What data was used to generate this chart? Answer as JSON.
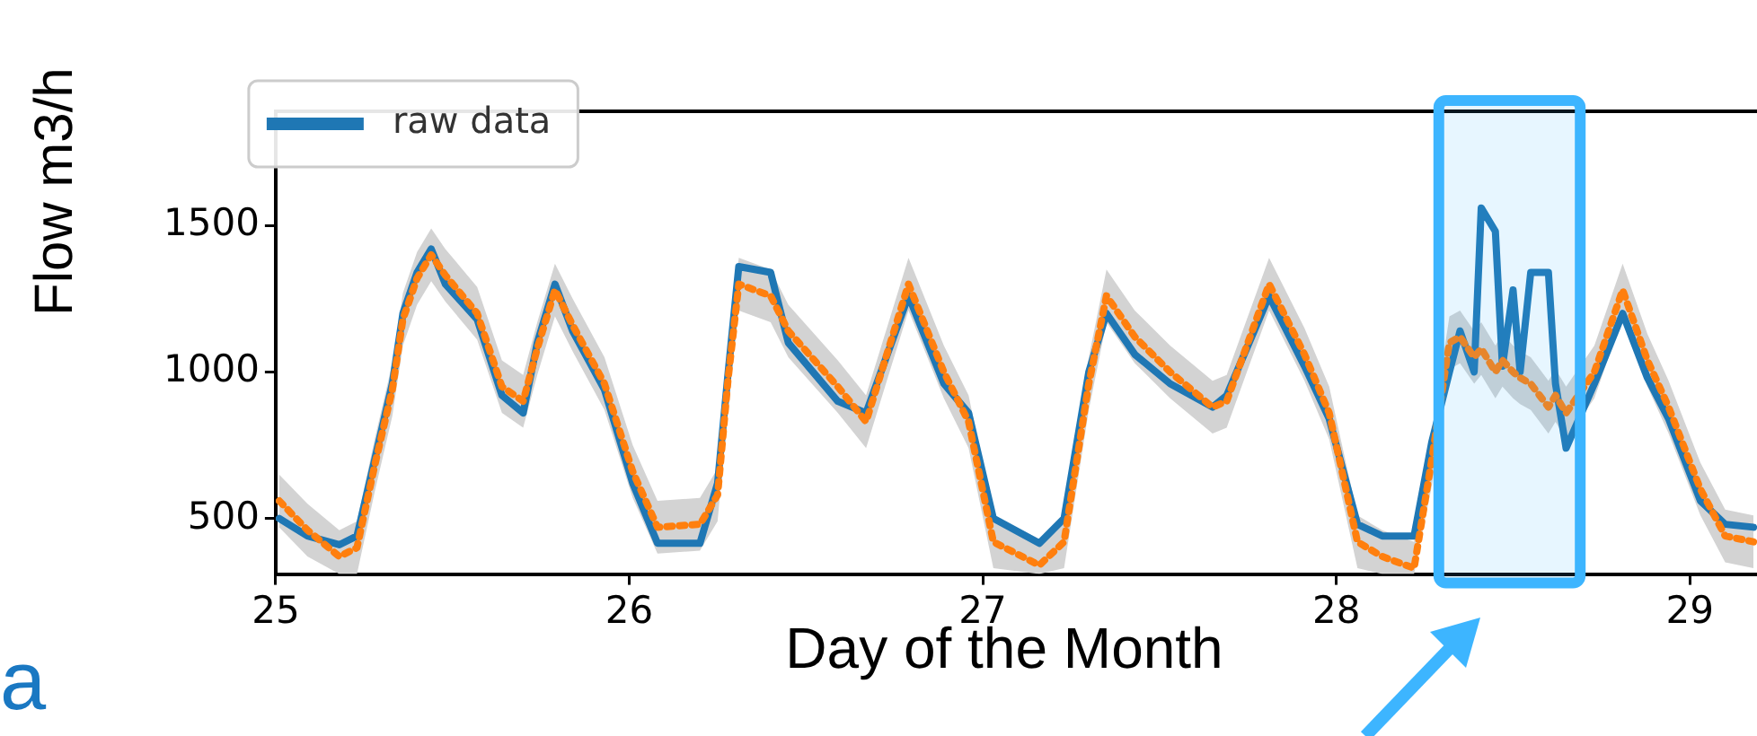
{
  "chart_data": {
    "type": "line",
    "xlabel": "Day of the Month",
    "ylabel": "Flow m3/h",
    "annotations": [
      "a"
    ],
    "x": [
      25.01,
      25.09,
      25.18,
      25.23,
      25.28,
      25.33,
      25.36,
      25.4,
      25.44,
      25.48,
      25.57,
      25.64,
      25.7,
      25.74,
      25.79,
      25.84,
      25.93,
      26.01,
      26.08,
      26.2,
      26.25,
      26.28,
      26.31,
      26.4,
      26.45,
      26.59,
      26.67,
      26.79,
      26.89,
      26.96,
      27.03,
      27.16,
      27.23,
      27.3,
      27.35,
      27.43,
      27.53,
      27.65,
      27.69,
      27.81,
      27.91,
      27.98,
      28.06,
      28.13,
      28.22,
      28.27,
      28.32,
      28.35,
      28.39,
      28.41,
      28.45,
      28.47,
      28.5,
      28.52,
      28.55,
      28.6,
      28.62,
      28.65,
      28.73,
      28.81,
      28.88,
      28.94,
      29.03,
      29.1,
      29.18
    ],
    "series": [
      {
        "name": "raw data",
        "color": "#1f77b4",
        "line_style": "solid",
        "values": [
          500,
          440,
          410,
          440,
          700,
          960,
          1200,
          1340,
          1420,
          1300,
          1180,
          920,
          860,
          1100,
          1300,
          1140,
          940,
          620,
          415,
          415,
          620,
          1000,
          1360,
          1340,
          1100,
          900,
          860,
          1260,
          960,
          860,
          500,
          415,
          500,
          1000,
          1200,
          1060,
          960,
          880,
          920,
          1260,
          1020,
          840,
          480,
          440,
          440,
          760,
          1000,
          1140,
          1000,
          1560,
          1480,
          1020,
          1280,
          1000,
          1340,
          1340,
          960,
          740,
          960,
          1200,
          980,
          840,
          560,
          480,
          470
        ]
      },
      {
        "color": "#ff7f0e",
        "line_style": "dotted",
        "values": [
          560,
          460,
          370,
          400,
          680,
          940,
          1180,
          1320,
          1400,
          1330,
          1200,
          950,
          900,
          1080,
          1280,
          1160,
          960,
          660,
          470,
          480,
          580,
          980,
          1300,
          1260,
          1140,
          950,
          830,
          1300,
          1000,
          830,
          420,
          340,
          420,
          960,
          1260,
          1120,
          1000,
          880,
          900,
          1300,
          1060,
          860,
          420,
          370,
          330,
          700,
          1100,
          1120,
          1050,
          1080,
          1000,
          1040,
          1000,
          980,
          960,
          880,
          920,
          860,
          1000,
          1280,
          1040,
          880,
          600,
          440,
          420
        ],
        "upper": [
          650,
          550,
          460,
          490,
          770,
          1030,
          1270,
          1410,
          1490,
          1420,
          1290,
          1040,
          990,
          1170,
          1370,
          1250,
          1050,
          750,
          560,
          570,
          670,
          1070,
          1390,
          1350,
          1230,
          1040,
          920,
          1390,
          1090,
          920,
          510,
          430,
          510,
          1050,
          1350,
          1210,
          1090,
          970,
          990,
          1390,
          1150,
          950,
          510,
          460,
          420,
          790,
          1190,
          1210,
          1140,
          1170,
          1090,
          1130,
          1090,
          1070,
          1050,
          970,
          1010,
          950,
          1090,
          1370,
          1130,
          970,
          690,
          530,
          510
        ],
        "lower": [
          470,
          370,
          310,
          310,
          590,
          850,
          1090,
          1230,
          1310,
          1240,
          1110,
          860,
          810,
          990,
          1190,
          1070,
          870,
          570,
          380,
          390,
          490,
          890,
          1210,
          1170,
          1050,
          860,
          740,
          1210,
          910,
          740,
          330,
          310,
          330,
          870,
          1170,
          1030,
          910,
          790,
          810,
          1210,
          970,
          770,
          330,
          310,
          310,
          610,
          1010,
          1030,
          960,
          990,
          910,
          950,
          910,
          890,
          870,
          790,
          830,
          770,
          910,
          1190,
          950,
          790,
          510,
          350,
          330
        ]
      }
    ],
    "xlim": [
      25,
      29.19
    ],
    "xticks": [
      25,
      26,
      27,
      28,
      29
    ],
    "ylim": [
      310,
      1890
    ],
    "yticks": [
      500,
      1000,
      1500
    ],
    "legend": "top left",
    "marker": "none",
    "bands": [
      {
        "axis": "x",
        "from": 28.29,
        "to": 28.69,
        "color": "#3db5ff"
      }
    ]
  }
}
